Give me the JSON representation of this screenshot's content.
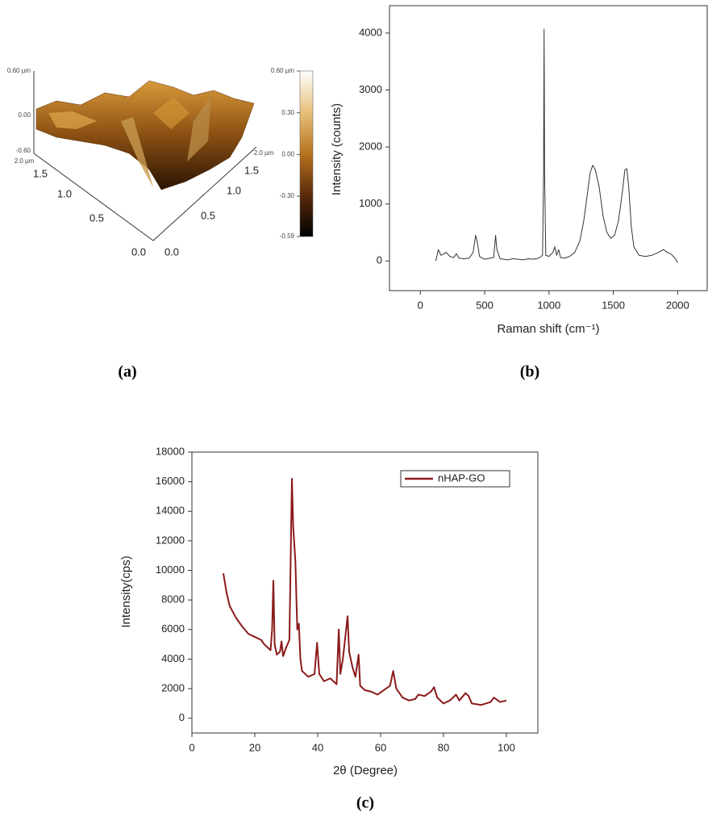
{
  "chart_data": [
    {
      "type": "surface3d",
      "panel_label": "(a)",
      "zticks": [
        {
          "value": 0.6,
          "label": "0.60 µm"
        },
        {
          "value": 0,
          "label": "0.00"
        },
        {
          "value": -0.6,
          "label": "-0.60"
        }
      ],
      "xticks": [
        {
          "value": 2,
          "label": "2.0 µm"
        },
        1.5,
        {
          "value": 1,
          "label": "1.0"
        },
        0.5,
        {
          "value": 0,
          "label": "0.0"
        }
      ],
      "yticks": [
        {
          "value": 2,
          "label": "2.0 µm"
        },
        1.5,
        {
          "value": 1,
          "label": "1.0"
        },
        0.5,
        {
          "value": 0,
          "label": "0.0"
        }
      ],
      "colorbar_ticks": [
        {
          "value": 0.6,
          "label": "0.60 µm"
        },
        {
          "value": 0.3,
          "label": "0.30"
        },
        {
          "value": 0,
          "label": "0.00"
        },
        {
          "value": -0.3,
          "label": "-0.30"
        },
        -0.59
      ],
      "colormap": [
        "#000000",
        "#5a2a0c",
        "#b7731c",
        "#e7c07a",
        "#ffffff"
      ]
    },
    {
      "type": "line",
      "panel_label": "(b)",
      "xlabel": "Raman shift (cm⁻¹)",
      "ylabel": "Intensity (counts)",
      "color": "#333333",
      "x": [
        120,
        140,
        160,
        180,
        200,
        230,
        260,
        280,
        300,
        340,
        380,
        410,
        430,
        445,
        460,
        500,
        540,
        570,
        585,
        595,
        620,
        680,
        720,
        760,
        800,
        840,
        880,
        920,
        950,
        958,
        962,
        966,
        975,
        1000,
        1030,
        1045,
        1060,
        1075,
        1090,
        1120,
        1160,
        1200,
        1240,
        1270,
        1300,
        1320,
        1340,
        1360,
        1390,
        1420,
        1450,
        1480,
        1510,
        1540,
        1570,
        1590,
        1605,
        1620,
        1640,
        1660,
        1700,
        1750,
        1800,
        1850,
        1890,
        1920,
        1950,
        1980,
        2000
      ],
      "values": [
        0,
        200,
        100,
        120,
        150,
        80,
        60,
        130,
        50,
        40,
        50,
        150,
        450,
        300,
        80,
        30,
        50,
        60,
        450,
        200,
        40,
        20,
        40,
        30,
        20,
        40,
        30,
        50,
        100,
        1500,
        4070,
        1500,
        100,
        80,
        150,
        250,
        100,
        200,
        60,
        50,
        80,
        150,
        350,
        700,
        1200,
        1550,
        1680,
        1600,
        1300,
        800,
        500,
        400,
        450,
        700,
        1200,
        1600,
        1620,
        1300,
        600,
        250,
        100,
        80,
        100,
        150,
        200,
        150,
        120,
        50,
        -30
      ],
      "xlim": [
        -240,
        2230
      ],
      "ylim": [
        -520,
        4480
      ],
      "xticks": [
        0,
        500,
        1000,
        1500,
        2000
      ],
      "yticks": [
        0,
        1000,
        2000,
        3000,
        4000
      ]
    },
    {
      "type": "line",
      "panel_label": "(c)",
      "xlabel": "2θ (Degree)",
      "ylabel": "Intensity(cps)",
      "legend": "upper right",
      "x": [
        10,
        11,
        12,
        14,
        16,
        18,
        20,
        22,
        23,
        24,
        25,
        25.5,
        25.9,
        26.3,
        27,
        28,
        28.5,
        29,
        30,
        31,
        31.8,
        32.2,
        32.9,
        33.5,
        34,
        34.5,
        35,
        37,
        39,
        39.8,
        40.5,
        42,
        44,
        46,
        46.7,
        47.2,
        48,
        49.5,
        50,
        51,
        52,
        53,
        53.5,
        55,
        57,
        59,
        61,
        63,
        64,
        65,
        67,
        69,
        71,
        72,
        74,
        76,
        77,
        78,
        80,
        82,
        84,
        85,
        87,
        88,
        89,
        92,
        95,
        96,
        98,
        100
      ],
      "series": [
        {
          "name": "nHAP-GO",
          "color": "#8b1a1a",
          "values": [
            9800,
            8500,
            7600,
            6800,
            6200,
            5700,
            5500,
            5300,
            5000,
            4800,
            4600,
            6000,
            9300,
            5000,
            4300,
            4500,
            5200,
            4200,
            4800,
            5300,
            16200,
            13000,
            10600,
            6000,
            6400,
            4000,
            3200,
            2800,
            3000,
            5100,
            3000,
            2500,
            2700,
            2300,
            6000,
            3000,
            4000,
            6900,
            4500,
            3500,
            2800,
            4300,
            2200,
            1900,
            1800,
            1600,
            1900,
            2200,
            3200,
            2000,
            1400,
            1200,
            1300,
            1600,
            1500,
            1800,
            2100,
            1400,
            1000,
            1200,
            1600,
            1200,
            1700,
            1500,
            1000,
            900,
            1100,
            1400,
            1100,
            1200
          ]
        }
      ],
      "xlim": [
        0,
        110
      ],
      "ylim": [
        -1000,
        18000
      ],
      "xticks": [
        0,
        20,
        40,
        60,
        80,
        100
      ],
      "yticks": [
        0,
        2000,
        4000,
        6000,
        8000,
        10000,
        12000,
        14000,
        16000,
        18000
      ]
    }
  ]
}
